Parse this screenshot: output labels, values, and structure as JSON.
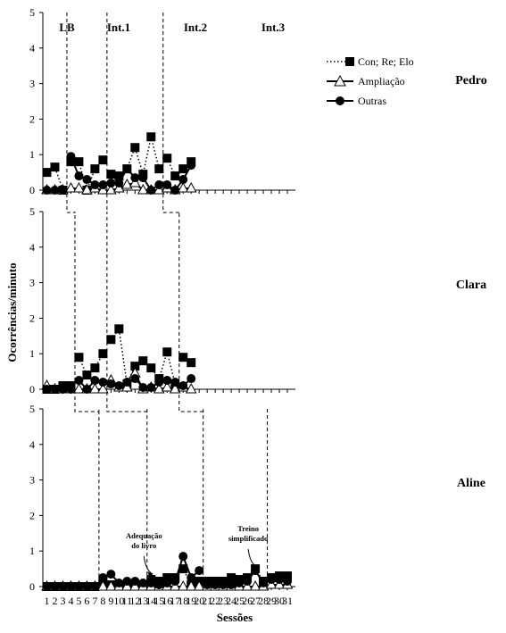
{
  "chart_data": {
    "type": "line",
    "xlabel": "Sessões",
    "ylabel": "Ocorrências/minuto",
    "ylim": [
      0,
      5
    ],
    "yticks": [
      0,
      1,
      2,
      3,
      4,
      5
    ],
    "xticks": [
      1,
      2,
      3,
      4,
      5,
      6,
      7,
      8,
      9,
      10,
      11,
      12,
      13,
      14,
      15,
      16,
      17,
      18,
      19,
      20,
      21,
      22,
      23,
      24,
      25,
      26,
      27,
      28,
      29,
      30,
      31
    ],
    "phases": [
      "LB",
      "Int.1",
      "Int.2",
      "Int.3"
    ],
    "legend": {
      "position": "top-right",
      "entries": [
        "Con; Re; Elo",
        "Ampliação",
        "Outras"
      ]
    },
    "panels": [
      {
        "participant": "Pedro",
        "series": [
          {
            "name": "Con; Re; Elo",
            "marker": "square",
            "line": "dotted",
            "segments": [
              {
                "x": [
                  1,
                  2,
                  3
                ],
                "y": [
                  0.5,
                  0.65,
                  0.0
                ]
              },
              {
                "x": [
                  4,
                  5,
                  6,
                  7,
                  8
                ],
                "y": [
                  0.8,
                  0.8,
                  0.0,
                  0.6,
                  0.85
                ]
              },
              {
                "x": [
                  9,
                  10,
                  11,
                  12,
                  13,
                  14,
                  15
                ],
                "y": [
                  0.45,
                  0.4,
                  0.6,
                  1.2,
                  0.45,
                  1.5,
                  0.6
                ]
              },
              {
                "x": [
                  16,
                  17,
                  18,
                  19
                ],
                "y": [
                  0.9,
                  0.4,
                  0.6,
                  0.8
                ]
              }
            ]
          },
          {
            "name": "Ampliação",
            "marker": "triangle",
            "line": "solid",
            "segments": [
              {
                "x": [
                  1,
                  2,
                  3
                ],
                "y": [
                  0,
                  0,
                  0
                ]
              },
              {
                "x": [
                  4,
                  5,
                  6,
                  7,
                  8
                ],
                "y": [
                  0.05,
                  0.05,
                  0.0,
                  0.05,
                  0.0
                ]
              },
              {
                "x": [
                  9,
                  10,
                  11,
                  12,
                  13,
                  14,
                  15
                ],
                "y": [
                  0.0,
                  0.05,
                  0.15,
                  0.2,
                  0.0,
                  0.0,
                  0.0
                ]
              },
              {
                "x": [
                  16,
                  17,
                  18,
                  19
                ],
                "y": [
                  0.05,
                  0.0,
                  0.05,
                  0.05
                ]
              }
            ]
          },
          {
            "name": "Outras",
            "marker": "circle",
            "line": "solid",
            "segments": [
              {
                "x": [
                  1,
                  2,
                  3
                ],
                "y": [
                  0,
                  0,
                  0
                ]
              },
              {
                "x": [
                  4,
                  5,
                  6,
                  7,
                  8
                ],
                "y": [
                  0.95,
                  0.4,
                  0.3,
                  0.15,
                  0.15
                ]
              },
              {
                "x": [
                  9,
                  10,
                  11,
                  12,
                  13,
                  14,
                  15
                ],
                "y": [
                  0.2,
                  0.2,
                  0.6,
                  0.35,
                  0.35,
                  0.0,
                  0.15
                ]
              },
              {
                "x": [
                  16,
                  17,
                  18,
                  19
                ],
                "y": [
                  0.15,
                  0.0,
                  0.3,
                  0.7
                ]
              }
            ]
          }
        ]
      },
      {
        "participant": "Clara",
        "series": [
          {
            "name": "Con; Re; Elo",
            "marker": "square",
            "line": "dotted",
            "segments": [
              {
                "x": [
                  1,
                  2,
                  3,
                  4
                ],
                "y": [
                  0.0,
                  0.0,
                  0.1,
                  0.1
                ]
              },
              {
                "x": [
                  5,
                  6,
                  7,
                  8
                ],
                "y": [
                  0.9,
                  0.4,
                  0.6,
                  1.0
                ]
              },
              {
                "x": [
                  9,
                  10,
                  11,
                  12,
                  13,
                  14,
                  15,
                  16,
                  17
                ],
                "y": [
                  1.4,
                  1.7,
                  0.15,
                  0.65,
                  0.8,
                  0.6,
                  0.3,
                  1.05,
                  0.15
                ]
              },
              {
                "x": [
                  18,
                  19
                ],
                "y": [
                  0.9,
                  0.75
                ]
              }
            ]
          },
          {
            "name": "Ampliação",
            "marker": "triangle",
            "line": "solid",
            "segments": [
              {
                "x": [
                  1,
                  2,
                  3,
                  4
                ],
                "y": [
                  0.1,
                  0.0,
                  0.0,
                  0.0
                ]
              },
              {
                "x": [
                  5,
                  6,
                  7,
                  8
                ],
                "y": [
                  0.0,
                  0.0,
                  0.0,
                  0.0
                ]
              },
              {
                "x": [
                  9,
                  10,
                  11,
                  12,
                  13,
                  14,
                  15,
                  16,
                  17
                ],
                "y": [
                  0.25,
                  0.05,
                  0.05,
                  0.45,
                  0.0,
                  0.05,
                  0.0,
                  0.05,
                  0.0
                ]
              },
              {
                "x": [
                  18,
                  19
                ],
                "y": [
                  0.05,
                  0.0
                ]
              }
            ]
          },
          {
            "name": "Outras",
            "marker": "circle",
            "line": "solid",
            "segments": [
              {
                "x": [
                  1,
                  2,
                  3,
                  4
                ],
                "y": [
                  0.0,
                  0.0,
                  0.0,
                  0.0
                ]
              },
              {
                "x": [
                  5,
                  6,
                  7,
                  8
                ],
                "y": [
                  0.25,
                  0.0,
                  0.25,
                  0.2
                ]
              },
              {
                "x": [
                  9,
                  10,
                  11,
                  12,
                  13,
                  14,
                  15,
                  16,
                  17
                ],
                "y": [
                  0.15,
                  0.1,
                  0.2,
                  0.3,
                  0.05,
                  0.05,
                  0.2,
                  0.25,
                  0.2
                ]
              },
              {
                "x": [
                  18,
                  19
                ],
                "y": [
                  0.1,
                  0.3
                ]
              }
            ]
          }
        ]
      },
      {
        "participant": "Aline",
        "annotations": [
          {
            "lines": [
              "Adequação",
              "do livro"
            ],
            "x": 14,
            "y": 0.4
          },
          {
            "lines": [
              "Treino",
              "simplificado"
            ],
            "x": 27,
            "y": 0.6
          }
        ],
        "series": [
          {
            "name": "Con; Re; Elo",
            "marker": "square",
            "line": "dotted",
            "segments": [
              {
                "x": [
                  1,
                  2,
                  3,
                  4,
                  5,
                  6,
                  7
                ],
                "y": [
                  0,
                  0,
                  0,
                  0,
                  0,
                  0,
                  0
                ]
              },
              {
                "x": [
                  8,
                  9,
                  10,
                  11,
                  12,
                  13
                ],
                "y": [
                  0.15,
                  0.05,
                  0.05,
                  0.05,
                  0.05,
                  0.05
                ]
              },
              {
                "x": [
                  14,
                  15,
                  16,
                  17,
                  18,
                  19,
                  20
                ],
                "y": [
                  0.2,
                  0.15,
                  0.25,
                  0.25,
                  0.5,
                  0.05,
                  0.15
                ]
              },
              {
                "x": [
                  21,
                  22,
                  23,
                  24,
                  25,
                  26,
                  27,
                  28
                ],
                "y": [
                  0.15,
                  0.15,
                  0.15,
                  0.25,
                  0.2,
                  0.25,
                  0.5,
                  0.15
                ]
              },
              {
                "x": [
                  29,
                  30,
                  31
                ],
                "y": [
                  0.25,
                  0.3,
                  0.3
                ]
              }
            ]
          },
          {
            "name": "Ampliação",
            "marker": "triangle",
            "line": "solid",
            "segments": [
              {
                "x": [
                  1,
                  2,
                  3,
                  4,
                  5,
                  6,
                  7
                ],
                "y": [
                  0,
                  0,
                  0,
                  0,
                  0,
                  0,
                  0
                ]
              },
              {
                "x": [
                  8,
                  9,
                  10,
                  11,
                  12,
                  13
                ],
                "y": [
                  0.0,
                  0.0,
                  0.0,
                  0.0,
                  0.0,
                  0.0
                ]
              },
              {
                "x": [
                  14,
                  15,
                  16,
                  17,
                  18,
                  19,
                  20
                ],
                "y": [
                  0.0,
                  0.0,
                  0.0,
                  0.0,
                  0.0,
                  0.0,
                  0.0
                ]
              },
              {
                "x": [
                  21,
                  22,
                  23,
                  24,
                  25,
                  26,
                  27,
                  28
                ],
                "y": [
                  0.0,
                  0.0,
                  0.0,
                  0.0,
                  0.0,
                  0.0,
                  0.0,
                  0.0
                ]
              },
              {
                "x": [
                  29,
                  30,
                  31
                ],
                "y": [
                  0.05,
                  0.05,
                  0.05
                ]
              }
            ]
          },
          {
            "name": "Outras",
            "marker": "circle",
            "line": "solid",
            "segments": [
              {
                "x": [
                  1,
                  2,
                  3,
                  4,
                  5,
                  6,
                  7
                ],
                "y": [
                  0,
                  0,
                  0,
                  0,
                  0,
                  0,
                  0
                ]
              },
              {
                "x": [
                  8,
                  9,
                  10,
                  11,
                  12,
                  13
                ],
                "y": [
                  0.25,
                  0.35,
                  0.1,
                  0.15,
                  0.15,
                  0.1
                ]
              },
              {
                "x": [
                  14,
                  15,
                  16,
                  17,
                  18,
                  19,
                  20
                ],
                "y": [
                  0.1,
                  0.05,
                  0.1,
                  0.15,
                  0.85,
                  0.25,
                  0.45
                ]
              },
              {
                "x": [
                  21,
                  22,
                  23,
                  24,
                  25,
                  26,
                  27,
                  28
                ],
                "y": [
                  0.05,
                  0.05,
                  0.05,
                  0.05,
                  0.1,
                  0.15,
                  0.45,
                  0.1
                ]
              },
              {
                "x": [
                  29,
                  30,
                  31
                ],
                "y": [
                  0.2,
                  0.2,
                  0.15
                ]
              }
            ]
          }
        ]
      }
    ],
    "phase_changes": {
      "Pedro": [
        3.5,
        8.5,
        15.5
      ],
      "Clara": [
        4.5,
        8.5,
        17.5
      ],
      "Aline": [
        7.5,
        13.5,
        20.5,
        28.5
      ]
    }
  }
}
